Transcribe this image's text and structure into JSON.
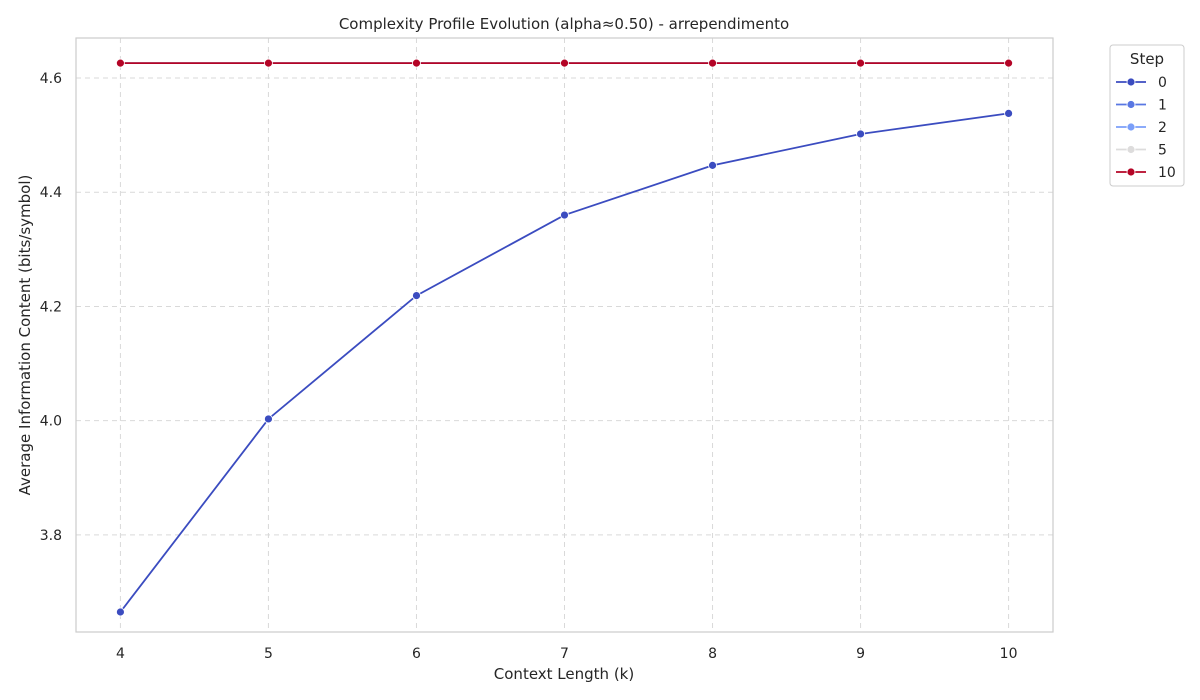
{
  "chart_data": {
    "type": "line",
    "title": "Complexity Profile Evolution (alpha≈0.50) - arrependimento",
    "xlabel": "Context Length (k)",
    "ylabel": "Average Information Content (bits/symbol)",
    "x": [
      4,
      5,
      6,
      7,
      8,
      9,
      10
    ],
    "xlim": [
      3.7,
      10.3
    ],
    "ylim": [
      3.63,
      4.67
    ],
    "xticks": [
      4,
      5,
      6,
      7,
      8,
      9,
      10
    ],
    "yticks": [
      3.8,
      4.0,
      4.2,
      4.4,
      4.6
    ],
    "grid": true,
    "legend": {
      "title": "Step",
      "placement": "upper-right-outside"
    },
    "series": [
      {
        "name": "0",
        "color": "#3b4cc0",
        "values": [
          3.665,
          4.003,
          4.219,
          4.36,
          4.447,
          4.502,
          4.538
        ]
      },
      {
        "name": "1",
        "color": "#5977e3",
        "values": [
          4.626,
          4.626,
          4.626,
          4.626,
          4.626,
          4.626,
          4.626
        ]
      },
      {
        "name": "2",
        "color": "#7b9ff9",
        "values": [
          4.626,
          4.626,
          4.626,
          4.626,
          4.626,
          4.626,
          4.626
        ]
      },
      {
        "name": "5",
        "color": "#dddcdc",
        "values": [
          4.626,
          4.626,
          4.626,
          4.626,
          4.626,
          4.626,
          4.626
        ]
      },
      {
        "name": "10",
        "color": "#b40426",
        "values": [
          4.626,
          4.626,
          4.626,
          4.626,
          4.626,
          4.626,
          4.626
        ]
      }
    ]
  }
}
